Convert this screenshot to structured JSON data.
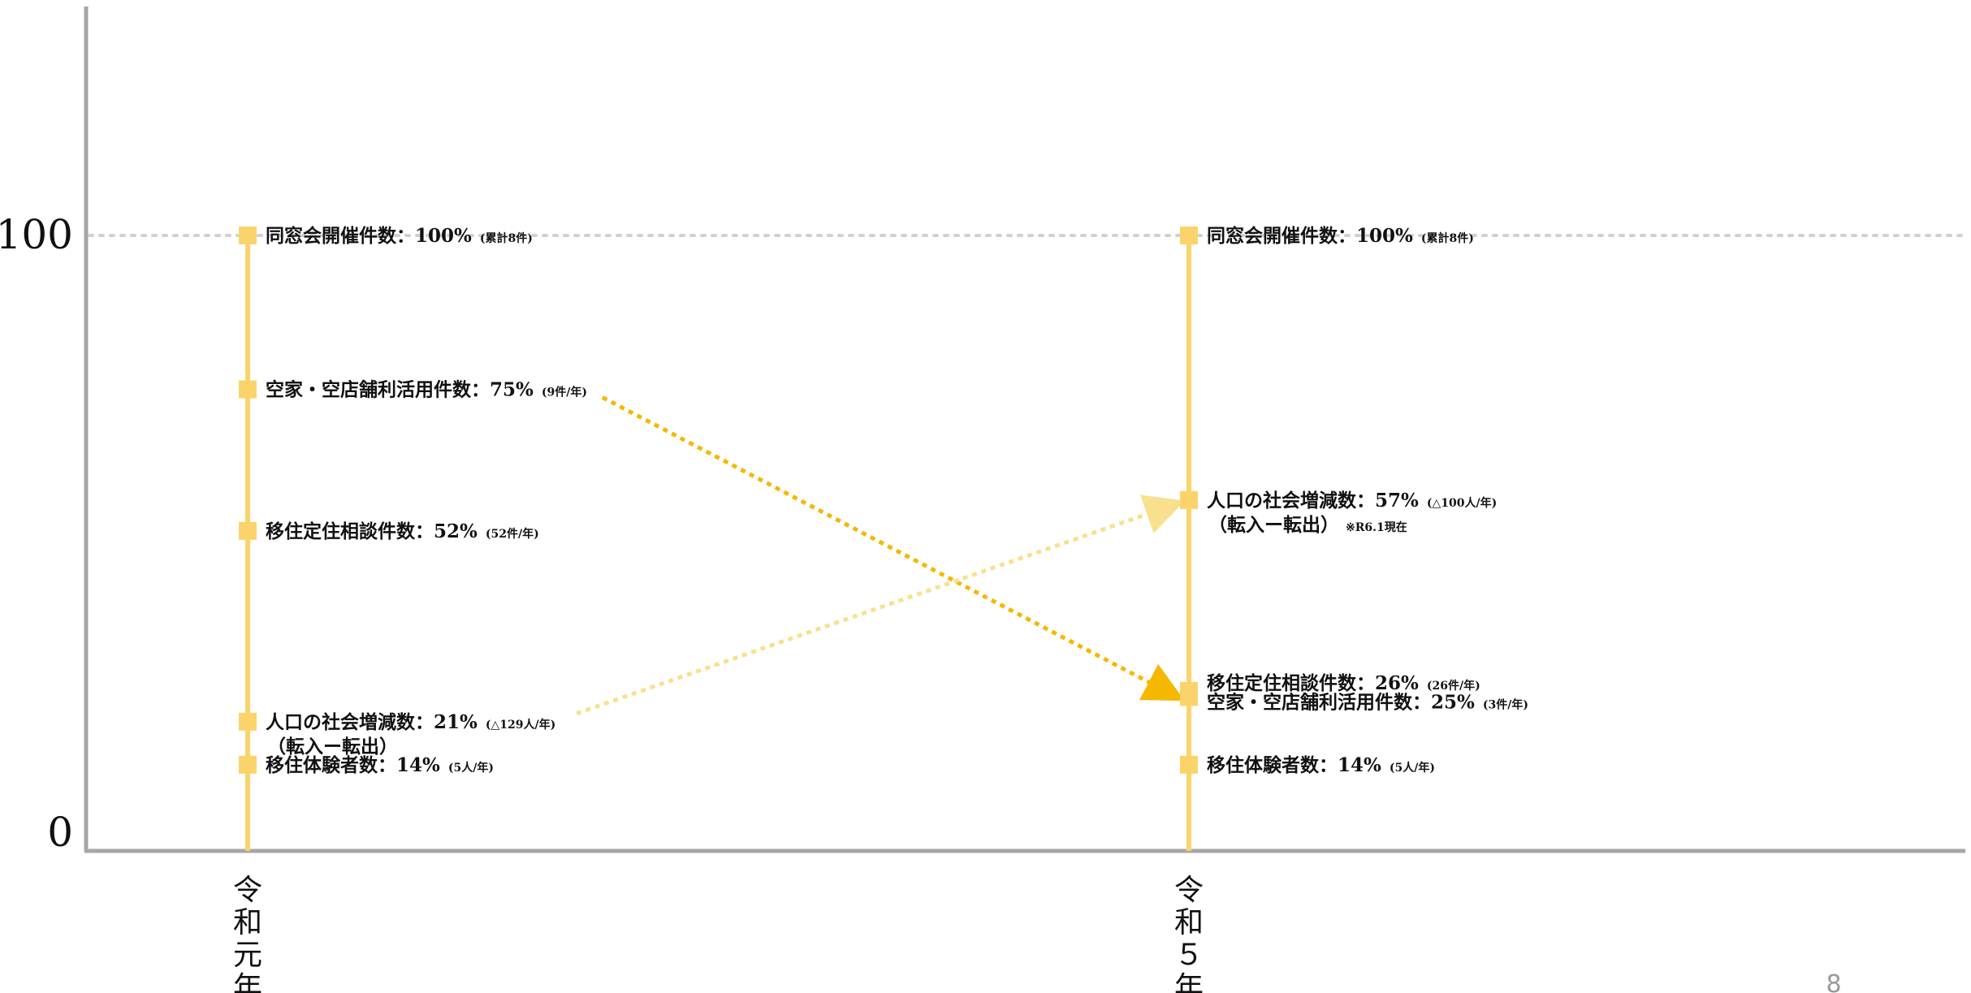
{
  "chart_data": {
    "type": "slope",
    "y_ticks": [
      "100",
      "0"
    ],
    "ylim": [
      0,
      100
    ],
    "grid_reference_value": 100,
    "categories": [
      "令和元年",
      "令和５年"
    ],
    "colors": {
      "line": "#fad46b",
      "marker": "#fad46b",
      "arrow_down": "#f5b800",
      "arrow_up": "#f8e08f",
      "axis": "#a6a6a6",
      "grid": "#d0d0d0"
    },
    "series": [
      {
        "name": "同窓会開催件数",
        "values": [
          100,
          100
        ],
        "labels": [
          {
            "main": "同窓会開催件数：100%",
            "note": "(累計8件)"
          },
          {
            "main": "同窓会開催件数：100%",
            "note": "(累計8件)"
          }
        ]
      },
      {
        "name": "空家・空店舗利活用件数",
        "values": [
          75,
          25
        ],
        "arrow": "down",
        "labels": [
          {
            "main": "空家・空店舗利活用件数：75%",
            "note": "(9件/年)"
          },
          {
            "main": "空家・空店舗利活用件数：25%",
            "note": "(3件/年)"
          }
        ]
      },
      {
        "name": "移住定住相談件数",
        "values": [
          52,
          26
        ],
        "labels": [
          {
            "main": "移住定住相談件数：52%",
            "note": "(52件/年)"
          },
          {
            "main": "移住定住相談件数：26%",
            "note": "(26件/年)"
          }
        ]
      },
      {
        "name": "人口の社会増減数",
        "values": [
          21,
          57
        ],
        "arrow": "up",
        "labels": [
          {
            "main": "人口の社会増減数：21%",
            "note": "(△129人/年)",
            "sub": "（転入ー転出）",
            "sub_note": ""
          },
          {
            "main": "人口の社会増減数：57%",
            "note": "(△100人/年)",
            "sub": "（転入ー転出）",
            "sub_note": "※R6.1現在"
          }
        ]
      },
      {
        "name": "移住体験者数",
        "values": [
          14,
          14
        ],
        "labels": [
          {
            "main": "移住体験者数：14%",
            "note": "(5人/年)"
          },
          {
            "main": "移住体験者数：14%",
            "note": "(5人/年)"
          }
        ]
      }
    ]
  },
  "page_number": "8"
}
